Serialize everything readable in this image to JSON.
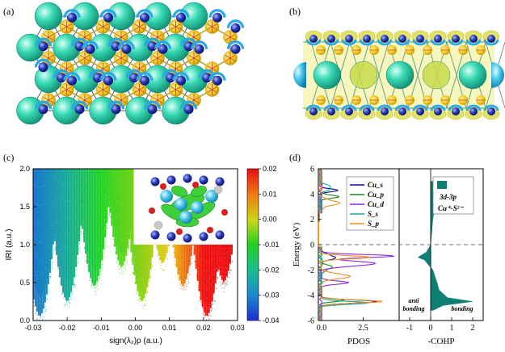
{
  "figure": {
    "panel_labels": [
      "(a)",
      "(b)",
      "(c)",
      "(d)"
    ]
  },
  "colors": {
    "large_atom": "#2fd6b0",
    "small_atom": "#1f2fb0",
    "s_atom": "#e8c21a",
    "bond": "#b7a23a",
    "lobe": "#2aa8e8",
    "iso_yellow": "#dede3c",
    "cohp_fill": "#0f7f73",
    "cu_s": "#0a0a9a",
    "cu_p": "#1a8a1a",
    "cu_d": "#8a2be2",
    "s_s": "#1aa8a8",
    "s_p": "#f28c1c"
  },
  "panel_c": {
    "xlabel": "sign(λ₂)ρ (a.u.)",
    "ylabel": "IRI (a.u.)",
    "x_ticks": [
      "-0.03",
      "-0.02",
      "-0.01",
      "0.00",
      "0.01",
      "0.02",
      "0.03"
    ],
    "y_ticks": [
      "0.0",
      "0.5",
      "1.0",
      "1.5",
      "2.0"
    ],
    "colorbar_ticks": [
      "0.02",
      "0.01",
      "0.00",
      "-0.01",
      "-0.02",
      "-0.03",
      "-0.04"
    ]
  },
  "panel_d": {
    "ylabel": "Energy (eV)",
    "y_ticks": [
      "6",
      "4",
      "2",
      "0",
      "-2",
      "-4",
      "-6"
    ],
    "pdos_xlabel": "PDOS",
    "pdos_x_ticks": [
      "0.0",
      "2.5"
    ],
    "cohp_xlabel": "-COHP",
    "cohp_x_ticks": [
      "-1",
      "0",
      "1",
      "2"
    ],
    "legend": [
      "Cu_s",
      "Cu_p",
      "Cu_d",
      "S_s",
      "S_p"
    ],
    "cohp_legend_line1": "3d-3p",
    "cohp_legend_line2": "Cu⁺-S²⁻",
    "anti_bonding_1": "anti",
    "anti_bonding_2": "bonding",
    "bonding_label": "bonding"
  },
  "chart_data": [
    {
      "type": "scatter",
      "panel": "(c)",
      "xlabel": "sign(λ₂)ρ (a.u.)",
      "ylabel": "IRI (a.u.)",
      "xlim": [
        -0.03,
        0.03
      ],
      "ylim": [
        0.0,
        2.0
      ],
      "colorbar_range": [
        -0.04,
        0.02
      ],
      "spikes_x": [
        -0.028,
        -0.02,
        -0.012,
        -0.004,
        0.002,
        0.008,
        0.014,
        0.021,
        0.026
      ],
      "spike_floor_iri": [
        0.05,
        0.25,
        0.45,
        0.7,
        0.25,
        0.75,
        0.45,
        0.05,
        0.5
      ]
    },
    {
      "type": "line",
      "panel": "(d) PDOS",
      "ylabel": "Energy (eV)",
      "ylim": [
        -6,
        6
      ],
      "xlim": [
        0,
        4.5
      ],
      "series": [
        {
          "name": "Cu_s",
          "peaks_energy": [
            -4.5,
            -1.0,
            4.3
          ]
        },
        {
          "name": "Cu_p",
          "peaks_energy": [
            -4.4,
            -1.8,
            3.8
          ]
        },
        {
          "name": "Cu_d",
          "peaks_energy": [
            -3.0,
            -1.5,
            -0.9
          ]
        },
        {
          "name": "S_s",
          "peaks_energy": [
            -4.6,
            4.5
          ]
        },
        {
          "name": "S_p",
          "peaks_energy": [
            -4.5,
            -2.5,
            -1.0,
            3.3
          ]
        }
      ]
    },
    {
      "type": "area",
      "panel": "(d) -COHP",
      "xlabel": "-COHP",
      "ylabel": "Energy (eV)",
      "xlim": [
        -1.5,
        2.5
      ],
      "ylim": [
        -6,
        6
      ],
      "series": [
        {
          "name": "3d-3p",
          "energy": [
            -5.2,
            -4.8,
            -4.5,
            -4.2,
            -3.6,
            -3.0,
            -2.0,
            -1.2,
            -1.0,
            -0.6,
            0.0,
            2.0,
            3.0,
            3.5,
            4.2,
            5.0
          ],
          "value": [
            0.1,
            0.6,
            2.0,
            0.8,
            0.4,
            0.3,
            0.1,
            -0.3,
            -0.6,
            -0.2,
            0.0,
            0.1,
            0.2,
            0.35,
            0.5,
            0.1
          ]
        }
      ]
    }
  ]
}
